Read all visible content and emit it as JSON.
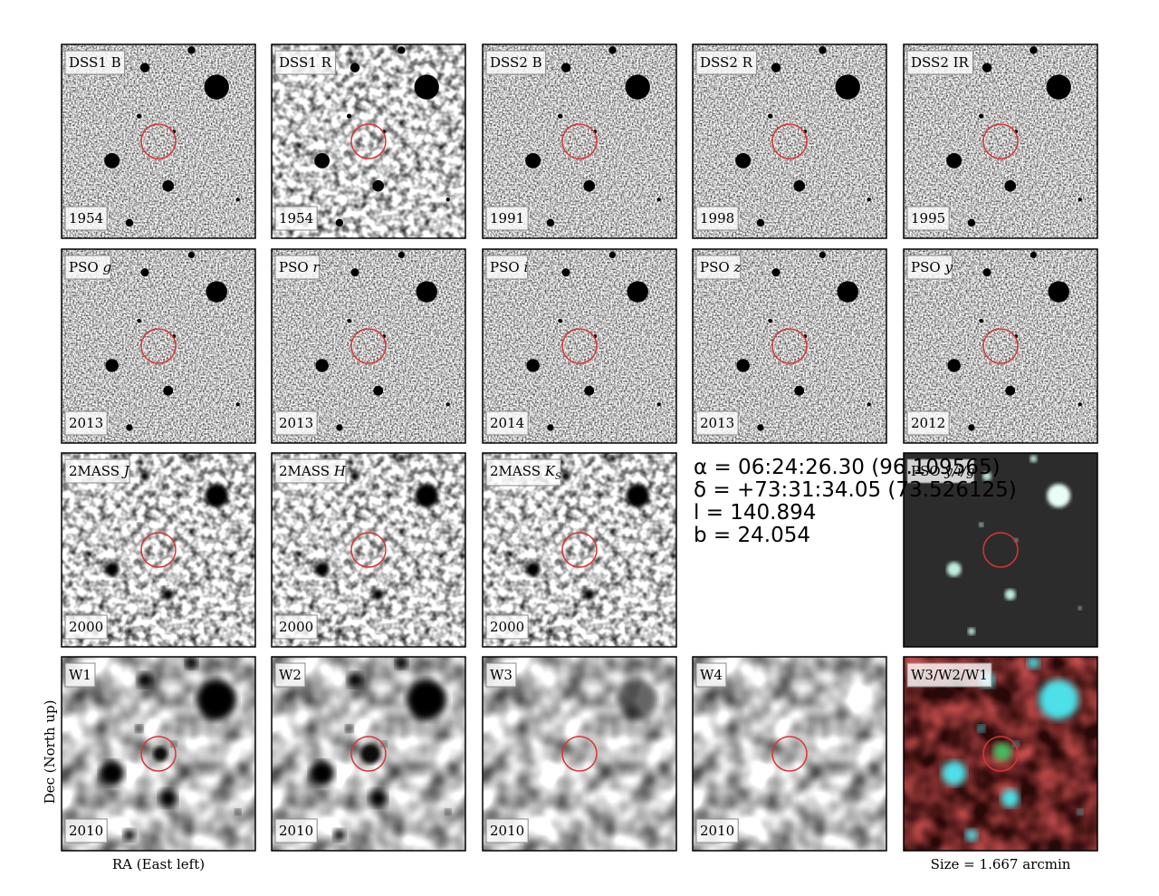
{
  "panels": [
    [
      {
        "label": "DSS1 B",
        "year": "1954"
      },
      {
        "label": "DSS1 R",
        "year": "1954"
      },
      {
        "label": "DSS2 B",
        "year": "1991"
      },
      {
        "label": "DSS2 R",
        "year": "1998"
      },
      {
        "label": "DSS2 IR",
        "year": "1995"
      }
    ],
    [
      {
        "label": "PSO",
        "band": "g",
        "year": "2013"
      },
      {
        "label": "PSO",
        "band": "r",
        "year": "2013"
      },
      {
        "label": "PSO",
        "band": "i",
        "year": "2014"
      },
      {
        "label": "PSO",
        "band": "z",
        "year": "2013"
      },
      {
        "label": "PSO",
        "band": "y",
        "year": "2012"
      }
    ],
    [
      {
        "label": "2MASS",
        "band": "J",
        "year": "2000"
      },
      {
        "label": "2MASS",
        "band": "H",
        "year": "2000"
      },
      {
        "label": "2MASS",
        "band": "K",
        "band_sub": "S",
        "year": "2000"
      },
      {
        "label": "PSO",
        "band": "y/i/g"
      }
    ],
    [
      {
        "label": "W1",
        "year": "2010"
      },
      {
        "label": "W2",
        "year": "2010"
      },
      {
        "label": "W3",
        "year": "2010"
      },
      {
        "label": "W4",
        "year": "2010"
      },
      {
        "label": "W3/W2/W1"
      }
    ]
  ],
  "coordinates": [
    "α = 06:24:26.30  (96.109565)",
    "δ = +73:31:34.05 (73.526125)",
    "l = 140.894",
    "b = 24.054"
  ],
  "axes": {
    "y_label": "Dec (North up)",
    "x_label": "RA (East left)",
    "size": "Size = 1.667 arcmin"
  }
}
